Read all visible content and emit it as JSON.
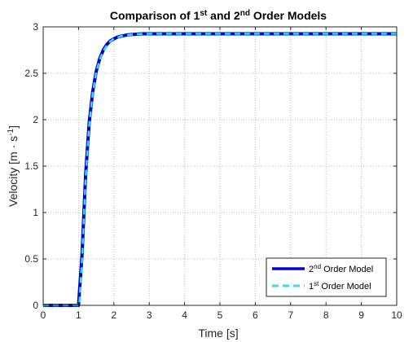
{
  "chart_data": {
    "type": "line",
    "title": {
      "a": "Comparison of 1",
      "sup1": "st",
      "b": " and 2",
      "sup2": "nd",
      "c": " Order Models"
    },
    "xlabel": "Time [s]",
    "ylabel": {
      "a": "Velocity [m · s",
      "sup": "-1",
      "b": "]"
    },
    "xlim": [
      0,
      10
    ],
    "ylim": [
      0,
      3
    ],
    "xticks": [
      "0",
      "1",
      "2",
      "3",
      "4",
      "5",
      "6",
      "7",
      "8",
      "9",
      "10"
    ],
    "yticks": [
      "0",
      "0.5",
      "1",
      "1.5",
      "2",
      "2.5",
      "3"
    ],
    "grid": true,
    "legend_position": "bottom-right",
    "series": [
      {
        "name": {
          "a": "2",
          "sup": "nd",
          "b": " Order Model"
        },
        "color": "#0000cc",
        "style": "solid",
        "x": [
          0,
          1,
          1.1,
          1.2,
          1.3,
          1.4,
          1.5,
          1.6,
          1.7,
          1.8,
          1.9,
          2.0,
          2.1,
          2.2,
          2.4,
          2.6,
          2.8,
          3.0,
          3.5,
          4,
          5,
          6,
          7,
          8,
          9,
          10
        ],
        "y": [
          0,
          0,
          0.55,
          1.4,
          1.96,
          2.3,
          2.52,
          2.66,
          2.75,
          2.81,
          2.85,
          2.87,
          2.89,
          2.9,
          2.915,
          2.92,
          2.925,
          2.925,
          2.925,
          2.925,
          2.925,
          2.925,
          2.925,
          2.925,
          2.925,
          2.925
        ]
      },
      {
        "name": {
          "a": "1",
          "sup": "st",
          "b": " Order Model"
        },
        "color": "#33ddee",
        "style": "dashed",
        "x": [
          0,
          1.02,
          1.1,
          1.2,
          1.3,
          1.4,
          1.5,
          1.6,
          1.7,
          1.8,
          1.9,
          2.0,
          2.1,
          2.2,
          2.4,
          2.6,
          2.8,
          3.0,
          3.5,
          4,
          5,
          6,
          7,
          8,
          9,
          10
        ],
        "y": [
          0,
          0,
          0.5,
          1.36,
          1.93,
          2.28,
          2.51,
          2.65,
          2.74,
          2.8,
          2.845,
          2.87,
          2.885,
          2.9,
          2.913,
          2.92,
          2.924,
          2.925,
          2.925,
          2.925,
          2.925,
          2.925,
          2.925,
          2.925,
          2.925,
          2.925
        ]
      }
    ]
  }
}
